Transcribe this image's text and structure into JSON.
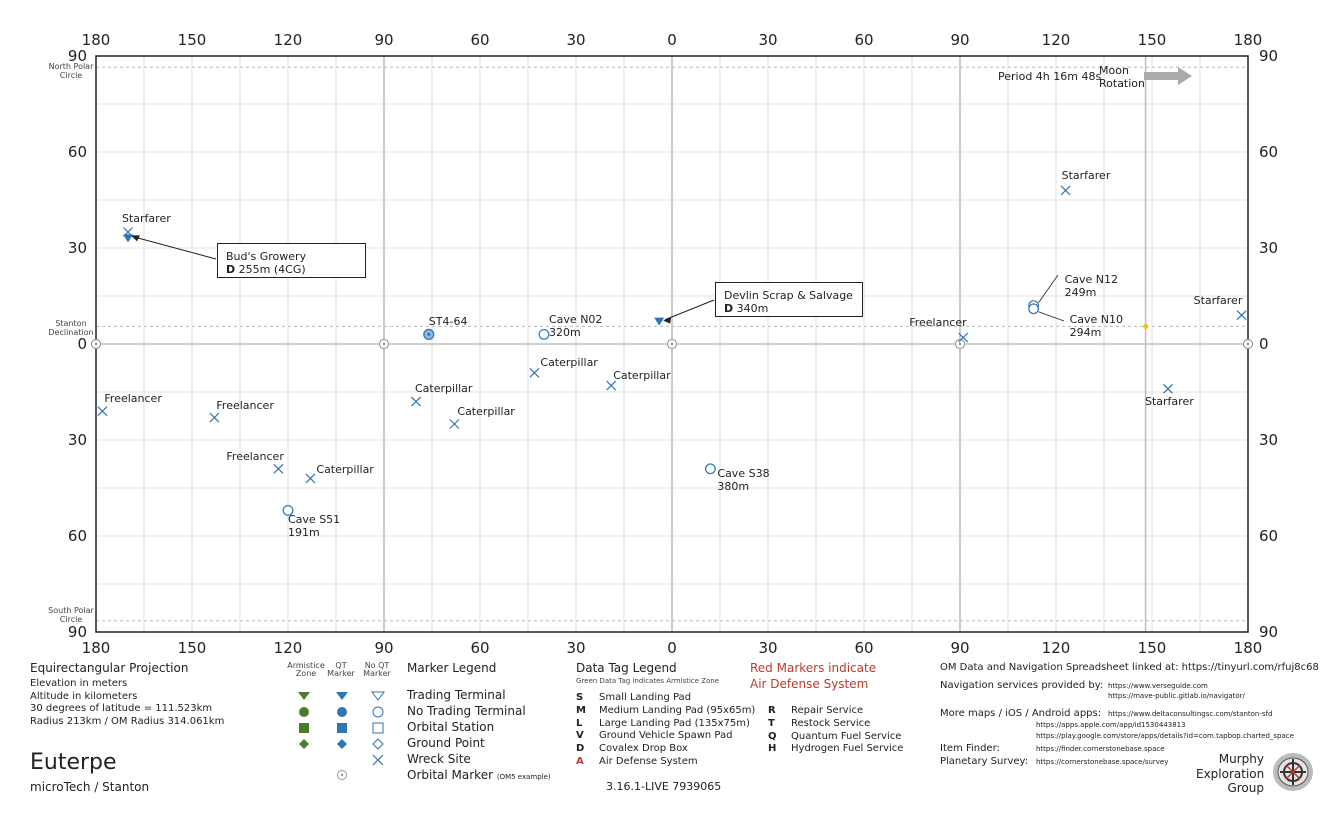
{
  "map": {
    "x_ticks": [
      "180",
      "150",
      "120",
      "90",
      "60",
      "30",
      "0",
      "30",
      "60",
      "90",
      "120",
      "150",
      "180"
    ],
    "y_ticks": [
      "90",
      "60",
      "30",
      "0",
      "30",
      "60",
      "90"
    ],
    "north_polar_label": "North Polar Circle",
    "south_polar_label": "South Polar Circle",
    "stanton_declination_label": "Stanton Declination",
    "rotation": {
      "period": "Period 4h 16m 48s",
      "label": "Moon Rotation"
    },
    "colors": {
      "qt_marker": "#2e75b6",
      "armistice": "#4e7c2a",
      "grid": "#c8c8c8",
      "axis": "#222222",
      "arrow": "#aaaaaa",
      "star": "#f1c40f"
    }
  },
  "markers": [
    {
      "type": "wreck",
      "lon": -170,
      "lat": 35,
      "label": "Starfarer"
    },
    {
      "type": "wreck",
      "lon": -178,
      "lat": -21,
      "label": "Freelancer"
    },
    {
      "type": "wreck",
      "lon": -143,
      "lat": -23,
      "label": "Freelancer"
    },
    {
      "type": "wreck",
      "lon": -123,
      "lat": -39,
      "label": "Freelancer"
    },
    {
      "type": "wreck",
      "lon": -113,
      "lat": -42,
      "label": "Caterpillar"
    },
    {
      "type": "wreck",
      "lon": -80,
      "lat": -18,
      "label": "Caterpillar"
    },
    {
      "type": "wreck",
      "lon": -68,
      "lat": -25,
      "label": "Caterpillar"
    },
    {
      "type": "wreck",
      "lon": -43,
      "lat": -9,
      "label": "Caterpillar"
    },
    {
      "type": "wreck",
      "lon": -19,
      "lat": -13,
      "label": "Caterpillar"
    },
    {
      "type": "wreck",
      "lon": 91,
      "lat": 2,
      "label": "Freelancer"
    },
    {
      "type": "wreck",
      "lon": 123,
      "lat": 48,
      "label": "Starfarer"
    },
    {
      "type": "wreck",
      "lon": 155,
      "lat": -14,
      "label": "Starfarer"
    },
    {
      "type": "wreck",
      "lon": 178,
      "lat": 9,
      "label": "Starfarer"
    },
    {
      "type": "ground_noqt",
      "lon": -120,
      "lat": -52,
      "label": "Cave S51",
      "sub": "191m"
    },
    {
      "type": "ground_noqt",
      "lon": -40,
      "lat": 3,
      "label": "Cave N02",
      "sub": "320m"
    },
    {
      "type": "ground_noqt",
      "lon": 12,
      "lat": -39,
      "label": "Cave S38",
      "sub": "380m"
    },
    {
      "type": "ground_noqt",
      "lon": 113,
      "lat": 12,
      "label": "Cave N12",
      "sub": "249m"
    },
    {
      "type": "ground_noqt",
      "lon": 113,
      "lat": 11,
      "label": "Cave N10",
      "sub": "294m"
    },
    {
      "type": "orbital_station",
      "lon": -76,
      "lat": 3,
      "label": "ST4-64"
    },
    {
      "type": "trading_qt",
      "lon": -170,
      "lat": 33,
      "label": ""
    },
    {
      "type": "trading_qt",
      "lon": -4,
      "lat": 7,
      "label": ""
    }
  ],
  "callouts": [
    {
      "name": "Bud's Growery",
      "tag": "D",
      "detail": "255m (4CG)"
    },
    {
      "name": "Devlin Scrap & Salvage",
      "tag": "D",
      "detail": "340m"
    }
  ],
  "projection": {
    "title": "Equirectangular  Projection",
    "lines": [
      "Elevation in meters",
      "Altitude in kilometers",
      "30 degrees of latitude = 111.523km",
      "Radius 213km / OM Radius 314.061km"
    ]
  },
  "moon": {
    "name": "Euterpe",
    "system": "microTech / Stanton"
  },
  "marker_legend": {
    "title": "Marker Legend",
    "col_headers": [
      "Armistice Zone",
      "QT Marker",
      "No QT Marker"
    ],
    "rows": [
      "Trading Terminal",
      "No Trading Terminal",
      "Orbital Station",
      "Ground Point",
      "Wreck Site",
      "Orbital Marker"
    ],
    "orbital_note": "(OM5 example)"
  },
  "data_tag_legend": {
    "title": "Data Tag Legend",
    "subtitle": "Green Data Tag indicates Armistice Zone",
    "left": [
      {
        "k": "S",
        "v": "Small Landing Pad"
      },
      {
        "k": "M",
        "v": "Medium Landing Pad (95x65m)"
      },
      {
        "k": "L",
        "v": "Large Landing Pad (135x75m)"
      },
      {
        "k": "V",
        "v": "Ground Vehicle Spawn Pad"
      },
      {
        "k": "D",
        "v": "Covalex Drop Box"
      },
      {
        "k": "A",
        "v": "Air Defense System"
      }
    ],
    "right": [
      {
        "k": "R",
        "v": "Repair Service"
      },
      {
        "k": "T",
        "v": "Restock Service"
      },
      {
        "k": "Q",
        "v": "Quantum Fuel Service"
      },
      {
        "k": "H",
        "v": "Hydrogen Fuel Service"
      }
    ],
    "red_note_1": "Red Markers indicate",
    "red_note_2": "Air Defense System",
    "version": "3.16.1-LIVE 7939065"
  },
  "links": {
    "om_data": "OM Data and Navigation Spreadsheet linked at: https://tinyurl.com/rfuj8c68",
    "nav_label": "Navigation services provided by:",
    "nav_urls": [
      "https://www.verseguide.com",
      "https://mave-public.gitlab.io/navigator/"
    ],
    "maps_label": "More maps / iOS / Android apps:",
    "maps_urls": [
      "https://www.deltaconsultingsc.com/stanton-sfd",
      "https://apps.apple.com/app/id1530443813",
      "https://play.google.com/store/apps/details?id=com.tapbop.charted_space"
    ],
    "item_label": "Item Finder:",
    "item_url": "https://finder.cornerstonebase.space",
    "survey_label": "Planetary Survey:",
    "survey_url": "https://cornerstonebase.space/survey",
    "group": [
      "Murphy",
      "Exploration",
      "Group"
    ]
  }
}
